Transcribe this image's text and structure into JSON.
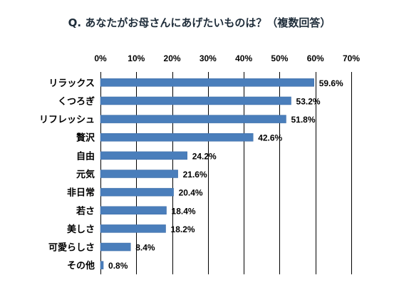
{
  "chart_data": {
    "type": "bar",
    "orientation": "horizontal",
    "title": "Q. あなたがお母さんにあげたいものは？（複数回答）",
    "categories": [
      "リラックス",
      "くつろぎ",
      "リフレッシュ",
      "贅沢",
      "自由",
      "元気",
      "非日常",
      "若さ",
      "美しさ",
      "可愛らしさ",
      "その他"
    ],
    "values": [
      59.6,
      53.2,
      51.8,
      42.6,
      24.2,
      21.6,
      20.4,
      18.4,
      18.2,
      8.4,
      0.8
    ],
    "value_labels": [
      "59.6%",
      "53.2%",
      "51.8%",
      "42.6%",
      "24.2%",
      "21.6%",
      "20.4%",
      "18.4%",
      "18.2%",
      "8.4%",
      "0.8%"
    ],
    "xlim": [
      0,
      70
    ],
    "xticks": [
      0,
      10,
      20,
      30,
      40,
      50,
      60,
      70
    ],
    "xtick_labels": [
      "0%",
      "10%",
      "20%",
      "30%",
      "40%",
      "50%",
      "60%",
      "70%"
    ],
    "x_axis_position": "top",
    "grid": true,
    "legend": false,
    "colors": {
      "bar": "#4a7ebb",
      "bar_edge": "#3a6aa5",
      "grid": "#000000",
      "title": "#1f2d3a",
      "text": "#000000"
    }
  }
}
